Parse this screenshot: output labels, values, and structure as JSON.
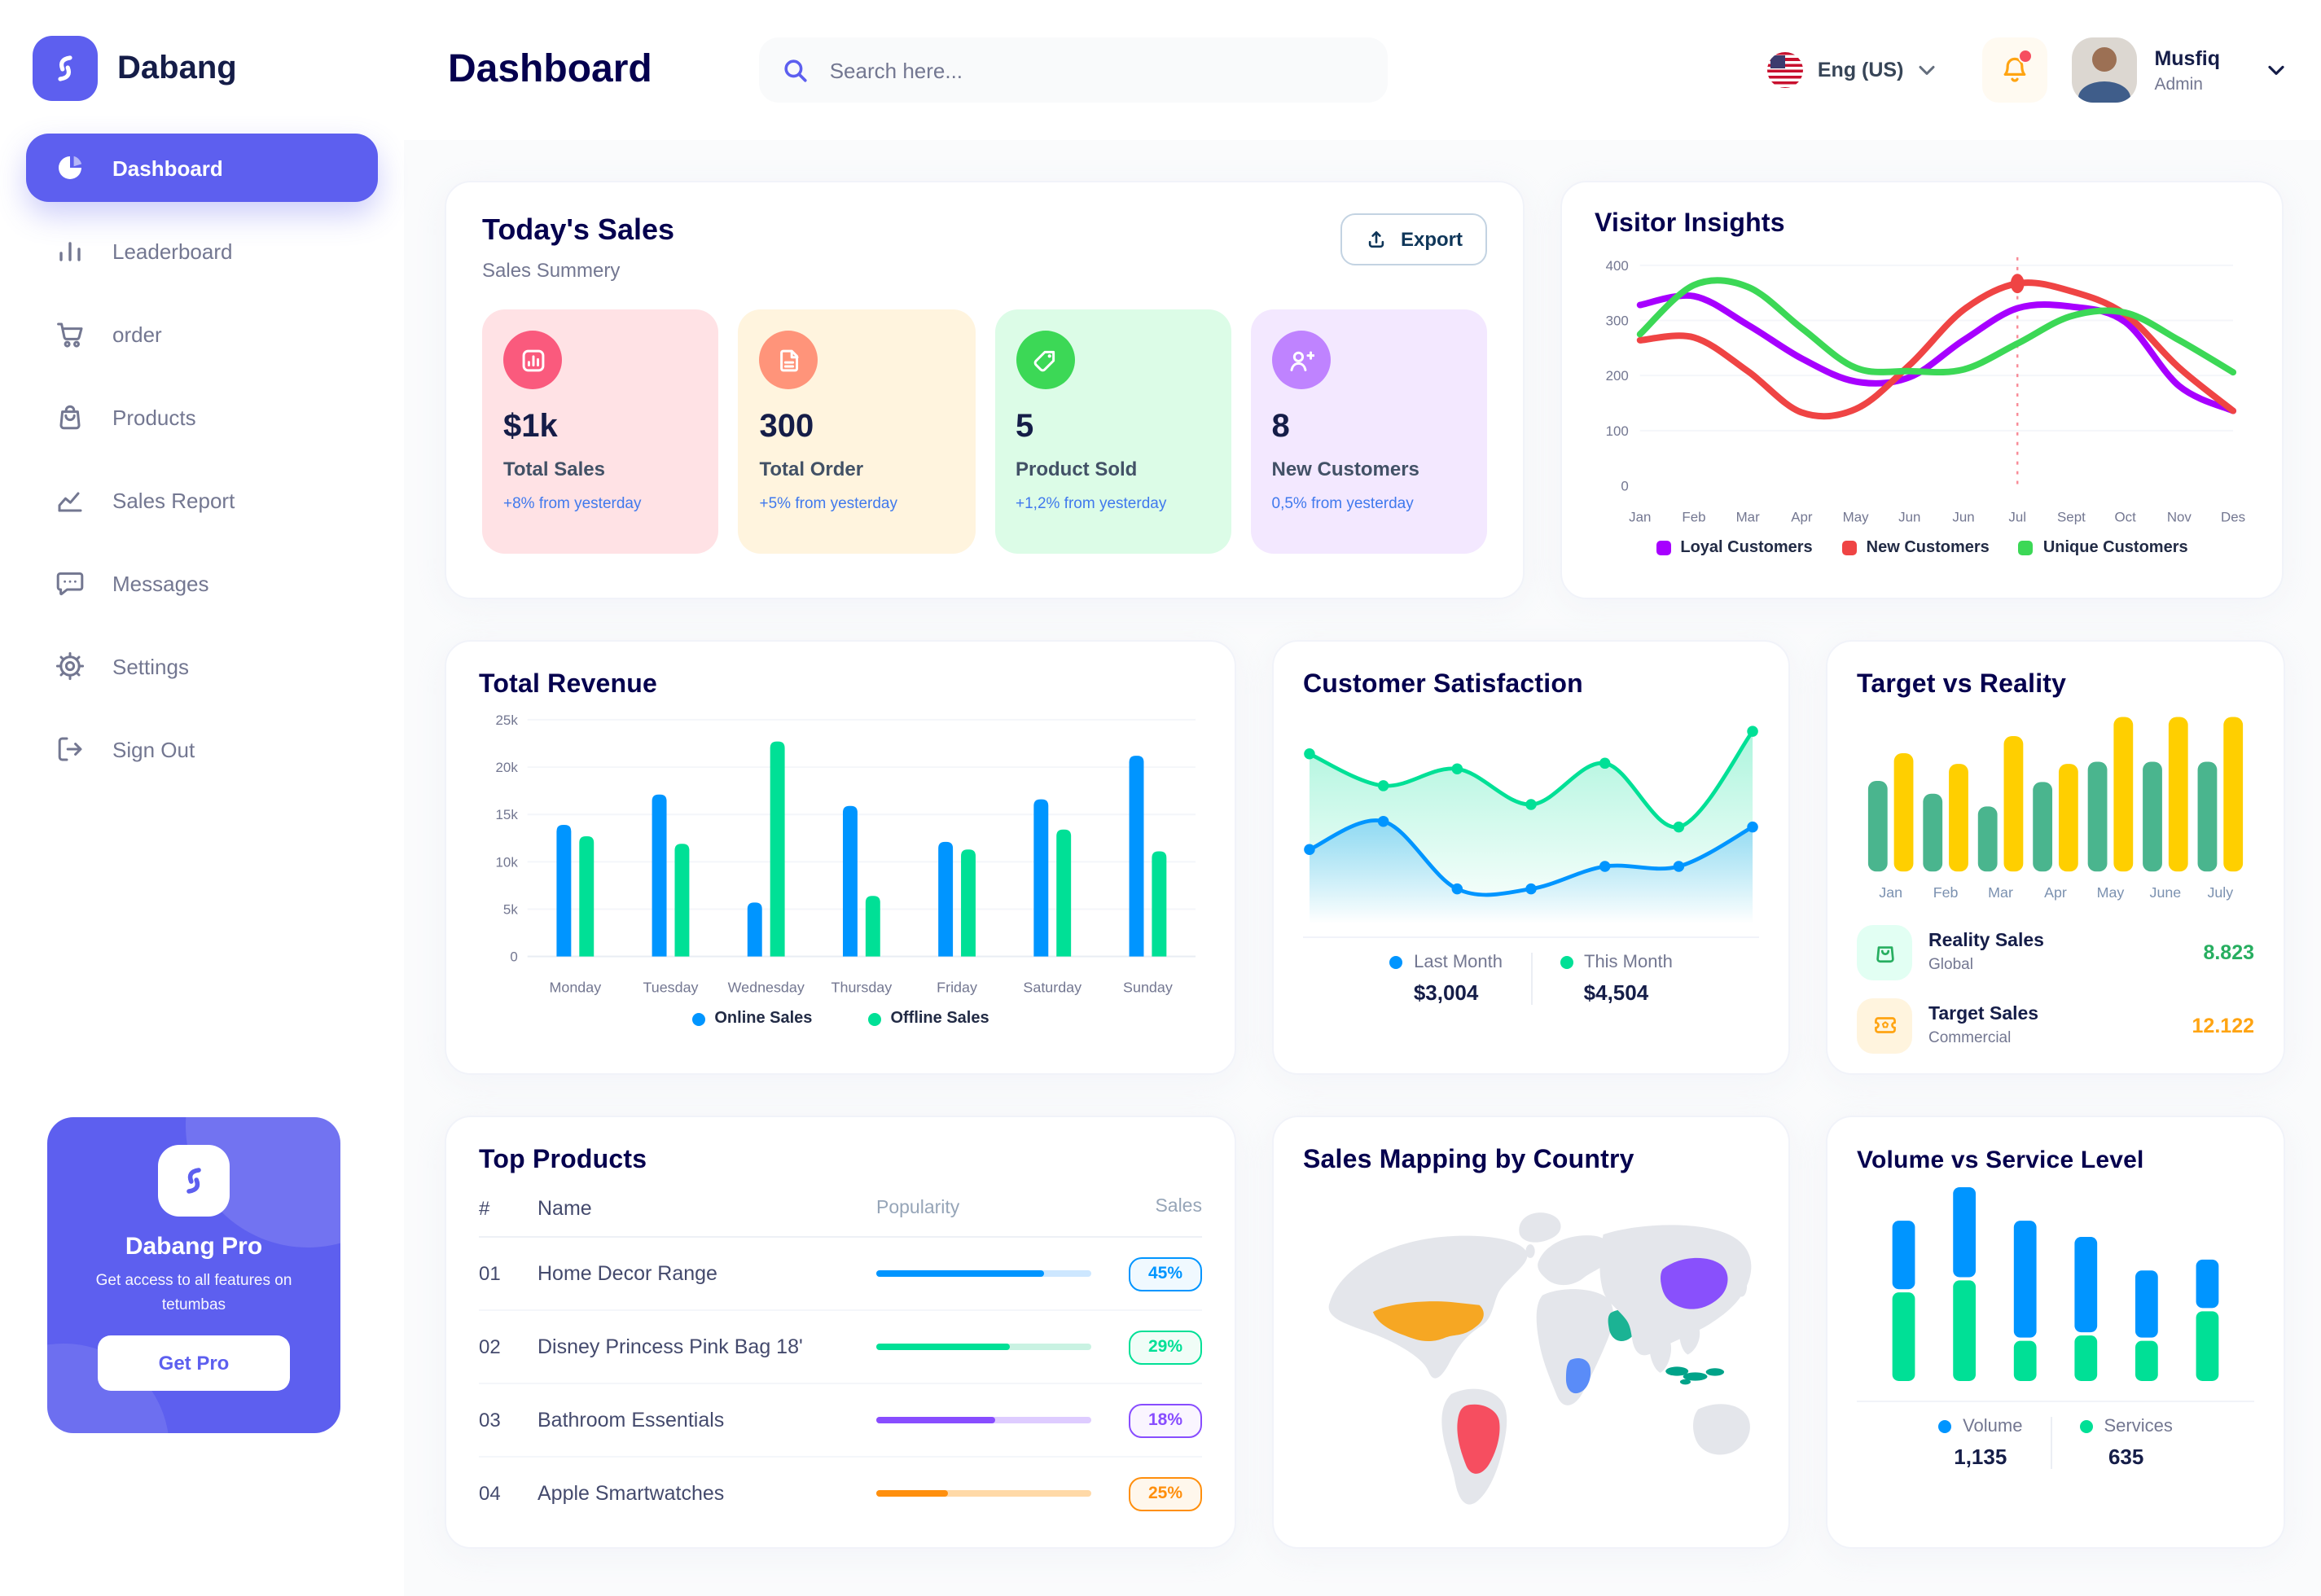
{
  "app": {
    "brand": "Dabang"
  },
  "sidebar": {
    "items": [
      {
        "label": "Dashboard",
        "active": true
      },
      {
        "label": "Leaderboard",
        "active": false
      },
      {
        "label": "order",
        "active": false
      },
      {
        "label": "Products",
        "active": false
      },
      {
        "label": "Sales Report",
        "active": false
      },
      {
        "label": "Messages",
        "active": false
      },
      {
        "label": "Settings",
        "active": false
      },
      {
        "label": "Sign Out",
        "active": false
      }
    ],
    "pro": {
      "title": "Dabang Pro",
      "subtitle": "Get access to all features on tetumbas",
      "button": "Get Pro"
    }
  },
  "header": {
    "title": "Dashboard",
    "search_placeholder": "Search here...",
    "language": "Eng (US)",
    "user": {
      "name": "Musfiq",
      "role": "Admin"
    }
  },
  "today_sales": {
    "title": "Today's Sales",
    "subtitle": "Sales Summery",
    "export_label": "Export",
    "cards": [
      {
        "value": "$1k",
        "label": "Total Sales",
        "delta": "+8% from yesterday",
        "bg": "#FFE2E5",
        "icon_bg": "#FA5A7D",
        "icon": "bar-chart"
      },
      {
        "value": "300",
        "label": "Total Order",
        "delta": "+5% from yesterday",
        "bg": "#FFF4DE",
        "icon_bg": "#FF947A",
        "icon": "file-text"
      },
      {
        "value": "5",
        "label": "Product Sold",
        "delta": "+1,2% from yesterday",
        "bg": "#DCFCE7",
        "icon_bg": "#3CD856",
        "icon": "tag"
      },
      {
        "value": "8",
        "label": "New Customers",
        "delta": "0,5% from yesterday",
        "bg": "#F3E8FF",
        "icon_bg": "#BF83FF",
        "icon": "user-plus"
      }
    ]
  },
  "top_products": {
    "title": "Top Products",
    "columns": [
      "#",
      "Name",
      "Popularity",
      "Sales"
    ],
    "rows": [
      {
        "num": "01",
        "name": "Home Decor Range",
        "popularity": 78,
        "sales": "45%",
        "color": "#0095FF",
        "track": "#CDE7FF",
        "badge_bg": "#F0F9FF"
      },
      {
        "num": "02",
        "name": "Disney Princess Pink Bag 18'",
        "popularity": 62,
        "sales": "29%",
        "color": "#00E096",
        "track": "#C9F2E2",
        "badge_bg": "#F0FDF7"
      },
      {
        "num": "03",
        "name": "Bathroom Essentials",
        "popularity": 55,
        "sales": "18%",
        "color": "#884DFF",
        "track": "#DECCFF",
        "badge_bg": "#FAF5FF"
      },
      {
        "num": "04",
        "name": "Apple Smartwatches",
        "popularity": 33,
        "sales": "25%",
        "color": "#FF8F0D",
        "track": "#FFD9A7",
        "badge_bg": "#FFF7EC"
      }
    ]
  },
  "sales_map": {
    "title": "Sales Mapping by Country",
    "land_color": "#E4E6EB",
    "countries": [
      {
        "id": "usa",
        "name": "United States",
        "color": "#F6A723"
      },
      {
        "id": "brazil",
        "name": "Brazil",
        "color": "#F64E60"
      },
      {
        "id": "saudi_arabia",
        "name": "Saudi Arabia",
        "color": "#1BB394"
      },
      {
        "id": "dr_congo",
        "name": "DR Congo",
        "color": "#5A8CF8"
      },
      {
        "id": "china",
        "name": "China",
        "color": "#8950FC"
      },
      {
        "id": "indonesia",
        "name": "Indonesia",
        "color": "#00A389"
      }
    ]
  },
  "chart_data": [
    {
      "id": "visitor_insights",
      "type": "line",
      "title": "Visitor Insights",
      "x_labels": [
        "Jan",
        "Feb",
        "Mar",
        "Apr",
        "May",
        "Jun",
        "Jun",
        "Jul",
        "Sept",
        "Oct",
        "Nov",
        "Des"
      ],
      "y_ticks": [
        "0",
        "100",
        "200",
        "300",
        "400"
      ],
      "y_axis_max": 400,
      "grid": true,
      "legend_position": "bottom",
      "highlight_index": 7,
      "series": [
        {
          "name": "Loyal Customers",
          "color": "#A700FF",
          "values": [
            328,
            344,
            292,
            231,
            189,
            197,
            264,
            322,
            325,
            297,
            181,
            136
          ]
        },
        {
          "name": "New Customers",
          "color": "#EF4444",
          "values": [
            264,
            269,
            208,
            133,
            139,
            219,
            319,
            367,
            353,
            311,
            214,
            136
          ]
        },
        {
          "name": "Unique Customers",
          "color": "#3CD856",
          "values": [
            275,
            364,
            361,
            286,
            214,
            208,
            211,
            258,
            308,
            314,
            264,
            206
          ]
        }
      ]
    },
    {
      "id": "total_revenue",
      "type": "bar",
      "title": "Total Revenue",
      "categories": [
        "Monday",
        "Tuesday",
        "Wednesday",
        "Thursday",
        "Friday",
        "Saturday",
        "Sunday"
      ],
      "y_ticks": [
        "0",
        "5k",
        "10k",
        "15k",
        "20k",
        "25k"
      ],
      "y_axis_max": 25000,
      "grid": true,
      "legend_position": "bottom",
      "series": [
        {
          "name": "Online Sales",
          "color": "#0095FF",
          "values": [
            13900,
            17100,
            5700,
            15900,
            12100,
            16600,
            21200
          ]
        },
        {
          "name": "Offline Sales",
          "color": "#00E096",
          "values": [
            12700,
            11900,
            22700,
            6400,
            11300,
            13400,
            11100
          ]
        }
      ]
    },
    {
      "id": "customer_satisfaction",
      "type": "area",
      "title": "Customer Satisfaction",
      "y_axis_max": 100,
      "grid": false,
      "legend_position": "bottom",
      "series": [
        {
          "name": "Last Month",
          "total": "$3,004",
          "color": "#0095FF",
          "values": [
            36,
            51,
            15,
            15,
            27,
            27,
            48
          ]
        },
        {
          "name": "This Month",
          "total": "$4,504",
          "color": "#00E096",
          "values": [
            87,
            70,
            79,
            60,
            82,
            48,
            99
          ]
        }
      ]
    },
    {
      "id": "target_vs_reality",
      "type": "bar",
      "title": "Target vs Reality",
      "categories": [
        "Jan",
        "Feb",
        "Mar",
        "Apr",
        "May",
        "June",
        "July"
      ],
      "y_axis_max": 15,
      "grid": false,
      "legend_position": "bottom",
      "series": [
        {
          "name": "Reality Sales",
          "subtitle": "Global",
          "total": "8.823",
          "color": "#4AB58E",
          "icon_bg": "#E2FFF3",
          "icon_color": "#27AE60",
          "value_color": "#27AE60",
          "values": [
            8.5,
            7.3,
            6.1,
            8.4,
            10.3,
            10.3,
            10.3
          ]
        },
        {
          "name": "Target Sales",
          "subtitle": "Commercial",
          "total": "12.122",
          "color": "#FFCF00",
          "icon_bg": "#FFF4DE",
          "icon_color": "#FFA412",
          "value_color": "#FFA412",
          "values": [
            11.1,
            10.1,
            12.7,
            10.1,
            14.5,
            14.5,
            14.5
          ]
        }
      ]
    },
    {
      "id": "volume_vs_service_level",
      "type": "stacked-bar",
      "title": "Volume vs Service Level",
      "y_axis_max": 1000,
      "grid": false,
      "legend_position": "bottom",
      "series": [
        {
          "name": "Volume",
          "total": "1,135",
          "color": "#0095FF",
          "values": [
            359,
            472,
            613,
            500,
            352,
            254
          ]
        },
        {
          "name": "Services",
          "total": "635",
          "color": "#00E096",
          "values": [
            465,
            528,
            211,
            239,
            211,
            366
          ]
        }
      ]
    }
  ]
}
